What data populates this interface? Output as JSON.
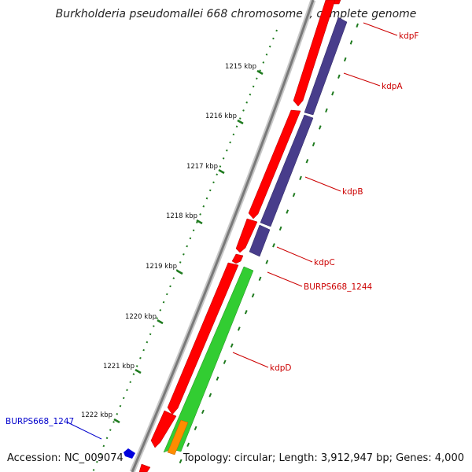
{
  "title": "Burkholderia pseudomallei 668 chromosome I, complete genome",
  "footer": {
    "accession": "Accession: NC_009074",
    "topology": "Topology: circular; Length: 3,912,947 bp; Genes: 4,000"
  },
  "colors": {
    "backbone": "#808080",
    "forward_gene": "#ff0000",
    "reverse_gene": "#483d8b",
    "cds_green": "#32cd32",
    "cds_orange": "#ff8c00",
    "ruler": "#1e7a1e",
    "label_red": "#cc0000",
    "label_blue": "#0000cc"
  },
  "ruler": {
    "ticks": [
      "1215 kbp",
      "1216 kbp",
      "1217 kbp",
      "1218 kbp",
      "1219 kbp",
      "1220 kbp",
      "1221 kbp",
      "1222 kbp"
    ]
  },
  "gene_labels": [
    {
      "text": "kdpF",
      "color": "red"
    },
    {
      "text": "kdpA",
      "color": "red"
    },
    {
      "text": "kdpB",
      "color": "red"
    },
    {
      "text": "kdpC",
      "color": "red"
    },
    {
      "text": "BURPS668_1244",
      "color": "red"
    },
    {
      "text": "kdpD",
      "color": "red"
    },
    {
      "text": "BURPS668_1247",
      "color": "blue"
    }
  ]
}
